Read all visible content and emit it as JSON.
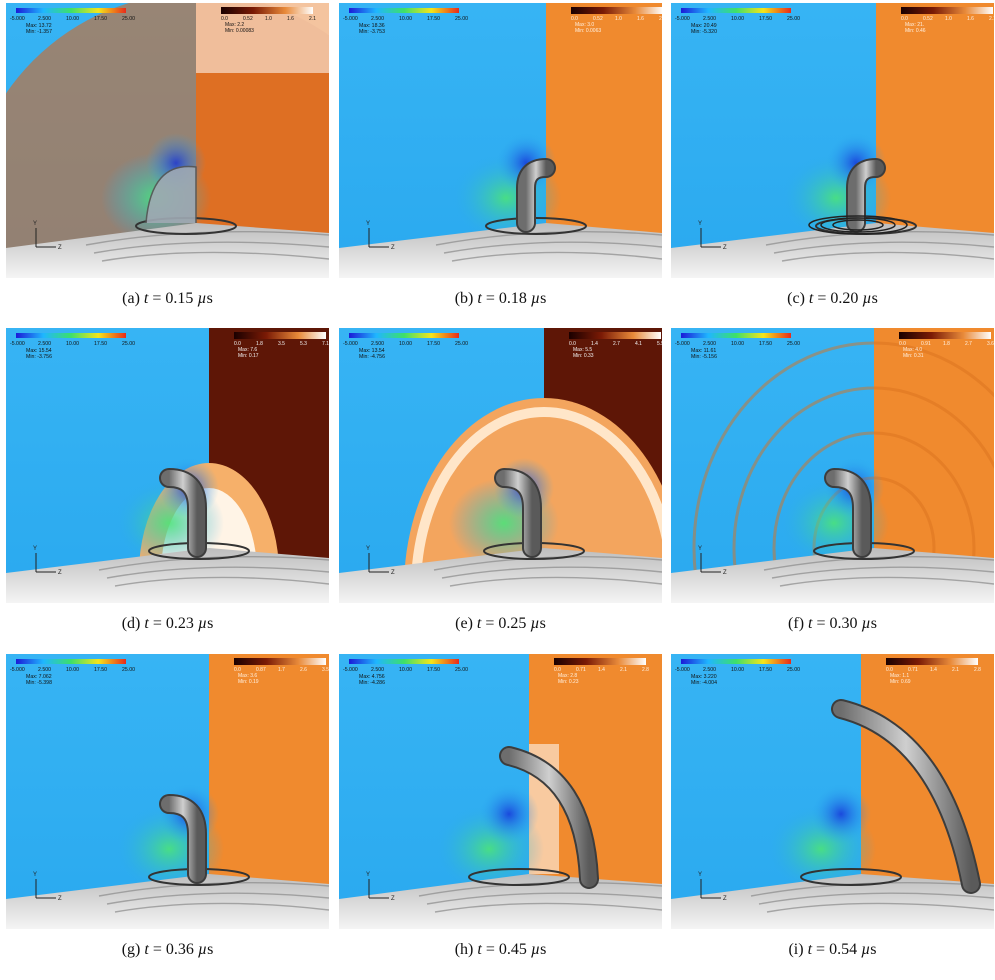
{
  "figure": {
    "panels": [
      {
        "label": "(a)",
        "t": "0.15",
        "unit": "µs",
        "left_legend": {
          "ticks": [
            "-5.000",
            "2.500",
            "10.00",
            "17.50",
            "25.00"
          ],
          "max": "Max:  13.72",
          "min": "Min:  -1.357"
        },
        "right_legend": {
          "ticks": [
            "0.0",
            "0.52",
            "1.0",
            "1.6",
            "2.1"
          ],
          "max": "Max:  2.2",
          "min": "Min:  0.00083"
        }
      },
      {
        "label": "(b)",
        "t": "0.18",
        "unit": "µs",
        "left_legend": {
          "ticks": [
            "-5.000",
            "2.500",
            "10.00",
            "17.50",
            "25.00"
          ],
          "max": "Max:  18.36",
          "min": "Min:  -3.753"
        },
        "right_legend": {
          "ticks": [
            "0.0",
            "0.52",
            "1.0",
            "1.6",
            "2.1"
          ],
          "max": "Max:  3.0",
          "min": "Min:  0.0063"
        }
      },
      {
        "label": "(c)",
        "t": "0.20",
        "unit": "µs",
        "left_legend": {
          "ticks": [
            "-5.000",
            "2.500",
            "10.00",
            "17.50",
            "25.00"
          ],
          "max": "Max:  20.49",
          "min": "Min:  -5.320"
        },
        "right_legend": {
          "ticks": [
            "0.0",
            "0.52",
            "1.0",
            "1.6",
            "2.1"
          ],
          "max": "Max:  21.",
          "min": "Min:  0.46"
        }
      },
      {
        "label": "(d)",
        "t": "0.23",
        "unit": "µs",
        "left_legend": {
          "ticks": [
            "-5.000",
            "2.500",
            "10.00",
            "17.50",
            "25.00"
          ],
          "max": "Max:  15.54",
          "min": "Min:  -3.756"
        },
        "right_legend": {
          "ticks": [
            "0.0",
            "1.8",
            "3.5",
            "5.3",
            "7.1"
          ],
          "max": "Max:  7.6",
          "min": "Min:  0.17"
        }
      },
      {
        "label": "(e)",
        "t": "0.25",
        "unit": "µs",
        "left_legend": {
          "ticks": [
            "-5.000",
            "2.500",
            "10.00",
            "17.50",
            "25.00"
          ],
          "max": "Max:  13.54",
          "min": "Min:  -4.756"
        },
        "right_legend": {
          "ticks": [
            "0.0",
            "1.4",
            "2.7",
            "4.1",
            "5.5"
          ],
          "max": "Max:  5.5",
          "min": "Min:  0.33"
        }
      },
      {
        "label": "(f)",
        "t": "0.30",
        "unit": "µs",
        "left_legend": {
          "ticks": [
            "-5.000",
            "2.500",
            "10.00",
            "17.50",
            "25.00"
          ],
          "max": "Max:  11.61",
          "min": "Min:  -5.156"
        },
        "right_legend": {
          "ticks": [
            "0.0",
            "0.91",
            "1.8",
            "2.7",
            "3.6"
          ],
          "max": "Max:  4.0",
          "min": "Min:  0.31"
        }
      },
      {
        "label": "(g)",
        "t": "0.36",
        "unit": "µs",
        "left_legend": {
          "ticks": [
            "-5.000",
            "2.500",
            "10.00",
            "17.50",
            "25.00"
          ],
          "max": "Max:  7.062",
          "min": "Min:  -5.398"
        },
        "right_legend": {
          "ticks": [
            "0.0",
            "0.87",
            "1.7",
            "2.6",
            "3.5"
          ],
          "max": "Max:  3.6",
          "min": "Min:  0.19"
        }
      },
      {
        "label": "(h)",
        "t": "0.45",
        "unit": "µs",
        "left_legend": {
          "ticks": [
            "-5.000",
            "2.500",
            "10.00",
            "17.50",
            "25.00"
          ],
          "max": "Max:  4.756",
          "min": "Min:  -4.286"
        },
        "right_legend": {
          "ticks": [
            "0.0",
            "0.71",
            "1.4",
            "2.1",
            "2.8"
          ],
          "max": "Max:  2.8",
          "min": "Min:  0.23"
        }
      },
      {
        "label": "(i)",
        "t": "0.54",
        "unit": "µs",
        "left_legend": {
          "ticks": [
            "-5.000",
            "2.500",
            "10.00",
            "17.50",
            "25.00"
          ],
          "max": "Max:  3.220",
          "min": "Min:  -4.004"
        },
        "right_legend": {
          "ticks": [
            "0.0",
            "0.71",
            "1.4",
            "2.1",
            "2.8"
          ],
          "max": "Max:  1.1",
          "min": "Min:  0.69"
        }
      }
    ],
    "axis_labels": {
      "y": "Y",
      "z": "Z"
    },
    "caption_symbol": "t",
    "caption_eq": "=",
    "colors": {
      "left_wall": "#2aa9ef",
      "right_wall": "#f08a2e",
      "right_wall_dark": "#5e1606",
      "floor": "#d9d9d9"
    }
  }
}
